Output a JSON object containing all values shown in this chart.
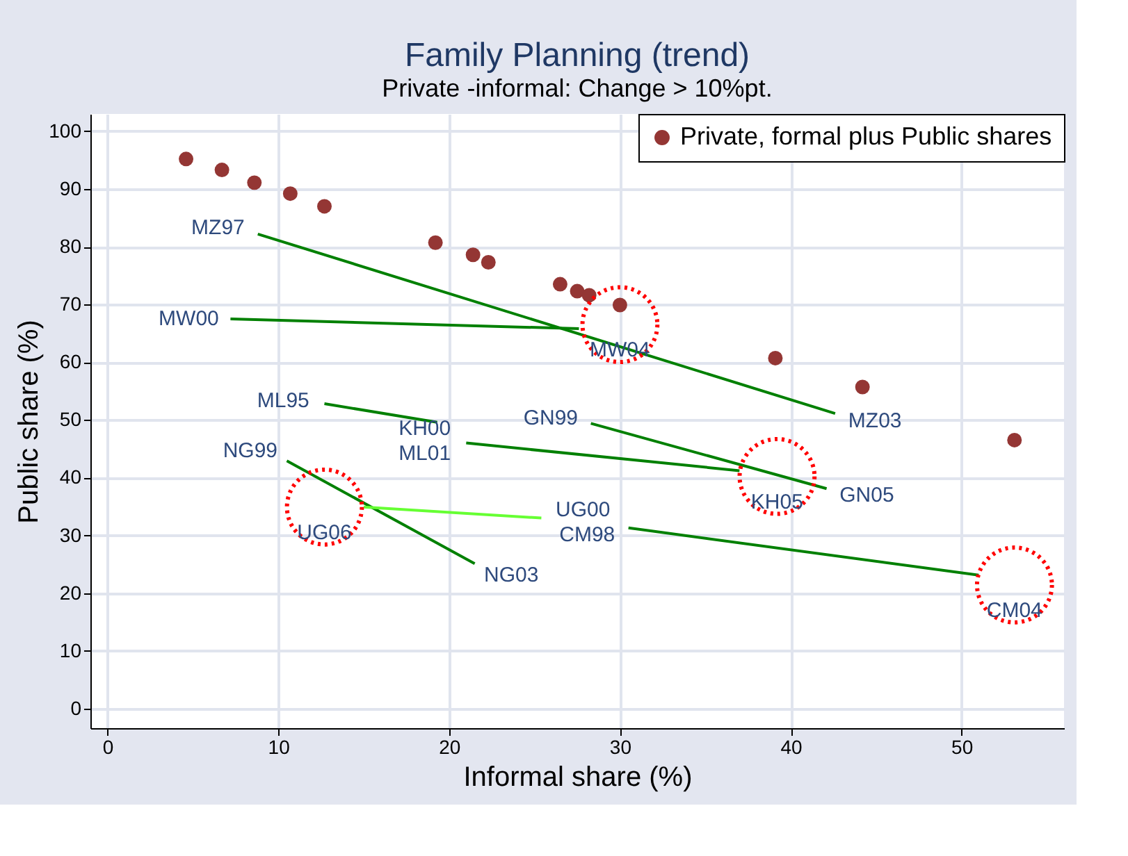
{
  "chart_data": {
    "type": "scatter",
    "title": "Family Planning (trend)",
    "subtitle": "Private -informal: Change > 10%pt.",
    "xlabel": "Informal share (%)",
    "ylabel": "Public share (%)",
    "xlim": [
      -1,
      56
    ],
    "xticks": [
      0,
      10,
      20,
      30,
      40,
      50
    ],
    "ylim": [
      -3.4,
      103
    ],
    "yticks": [
      0,
      10,
      20,
      30,
      40,
      50,
      60,
      70,
      80,
      90,
      100
    ],
    "grid": true,
    "legend": "top right",
    "marker": "circle",
    "series": [
      {
        "name": "Private, formal plus Public shares",
        "color": "#943634",
        "x": [
          4.6,
          6.7,
          8.6,
          10.7,
          12.7,
          19.2,
          21.4,
          22.3,
          26.5,
          27.5,
          28.2,
          30.0,
          39.1,
          44.2,
          53.1
        ],
        "values": [
          95.2,
          93.3,
          91.1,
          89.2,
          87.0,
          80.7,
          78.6,
          77.3,
          73.5,
          72.3,
          71.6,
          69.9,
          60.7,
          55.7,
          46.5
        ]
      },
      {
        "type": "line",
        "marker": "none",
        "color": "#008000",
        "x": [
          8.8,
          42.6
        ],
        "values": [
          82.2,
          51.1
        ]
      },
      {
        "type": "line",
        "marker": "none",
        "color": "#008000",
        "x": [
          7.2,
          27.6
        ],
        "values": [
          67.5,
          65.8
        ]
      },
      {
        "type": "line",
        "marker": "none",
        "color": "#008000",
        "x": [
          12.7,
          19.3
        ],
        "values": [
          52.8,
          49.6
        ]
      },
      {
        "type": "line",
        "marker": "none",
        "color": "#008000",
        "x": [
          21.0,
          37.0
        ],
        "values": [
          46.0,
          41.2
        ]
      },
      {
        "type": "line",
        "marker": "none",
        "color": "#008000",
        "x": [
          28.3,
          42.1
        ],
        "values": [
          49.4,
          38.1
        ]
      },
      {
        "type": "line",
        "marker": "none",
        "color": "#008000",
        "x": [
          10.5,
          21.5
        ],
        "values": [
          42.9,
          25.1
        ]
      },
      {
        "type": "line",
        "marker": "none",
        "color": "#66ff33",
        "x": [
          25.4,
          15.0
        ],
        "values": [
          33.0,
          34.9
        ]
      },
      {
        "type": "line",
        "marker": "none",
        "color": "#008000",
        "x": [
          30.5,
          51.0
        ],
        "values": [
          31.3,
          23.1
        ]
      },
      {
        "type": "scatter",
        "marker": "circle",
        "color": "#ff0000",
        "line_style": "dotted",
        "x": [
          30.0,
          39.2,
          12.7,
          53.1
        ],
        "values": [
          66.5,
          40.2,
          34.9,
          21.4
        ]
      }
    ],
    "annotations": [
      {
        "text": "MZ97",
        "x": 8.8,
        "y": 82.2
      },
      {
        "text": "MW00",
        "x": 7.2,
        "y": 67.5
      },
      {
        "text": "ML95",
        "x": 12.7,
        "y": 52.8
      },
      {
        "text": "NG99",
        "x": 10.5,
        "y": 42.9
      },
      {
        "text": "KH00",
        "x": 21.0,
        "y": 46.0
      },
      {
        "text": "ML01",
        "x": 21.0,
        "y": 46.0
      },
      {
        "text": "GN99",
        "x": 28.3,
        "y": 49.4
      },
      {
        "text": "UG00",
        "x": 25.4,
        "y": 33.0
      },
      {
        "text": "CM98",
        "x": 30.5,
        "y": 31.3
      },
      {
        "text": "MW04",
        "x": 30.0,
        "y": 66.5
      },
      {
        "text": "UG06",
        "x": 12.7,
        "y": 34.9
      },
      {
        "text": "NG03",
        "x": 21.5,
        "y": 25.1
      },
      {
        "text": "MZ03",
        "x": 42.6,
        "y": 51.1
      },
      {
        "text": "KH05",
        "x": 39.2,
        "y": 40.2
      },
      {
        "text": "GN05",
        "x": 42.1,
        "y": 38.1
      },
      {
        "text": "CM04",
        "x": 53.1,
        "y": 21.4
      }
    ]
  }
}
